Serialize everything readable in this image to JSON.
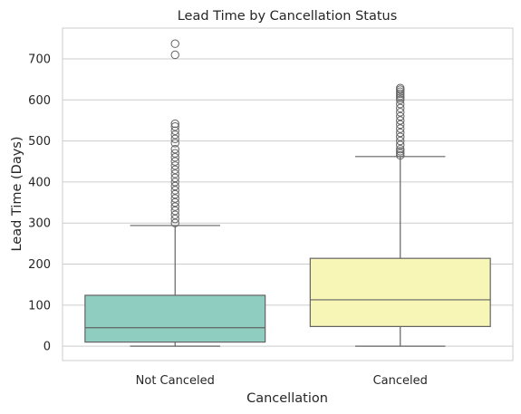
{
  "chart_data": {
    "type": "box",
    "title": "Lead Time by Cancellation Status",
    "xlabel": "Cancellation",
    "ylabel": "Lead Time (Days)",
    "ylim": [
      -35,
      775
    ],
    "yticks": [
      0,
      100,
      200,
      300,
      400,
      500,
      600,
      700
    ],
    "grid": true,
    "categories": [
      "Not Canceled",
      "Canceled"
    ],
    "boxes": [
      {
        "category": "Not Canceled",
        "color": "#8ecdc0",
        "min": 0,
        "q1": 10,
        "median": 45,
        "q3": 124,
        "whisker_high": 294,
        "outliers": [
          300,
          310,
          320,
          330,
          340,
          350,
          360,
          370,
          380,
          390,
          400,
          410,
          420,
          430,
          440,
          450,
          460,
          470,
          480,
          495,
          505,
          515,
          525,
          535,
          542,
          710,
          737
        ]
      },
      {
        "category": "Canceled",
        "color": "#f7f6b6",
        "min": 0,
        "q1": 48,
        "median": 113,
        "q3": 214,
        "whisker_high": 462,
        "outliers": [
          465,
          470,
          475,
          480,
          490,
          500,
          510,
          520,
          530,
          540,
          550,
          560,
          570,
          580,
          590,
          600,
          605,
          610,
          615,
          620,
          625,
          629
        ]
      }
    ]
  }
}
